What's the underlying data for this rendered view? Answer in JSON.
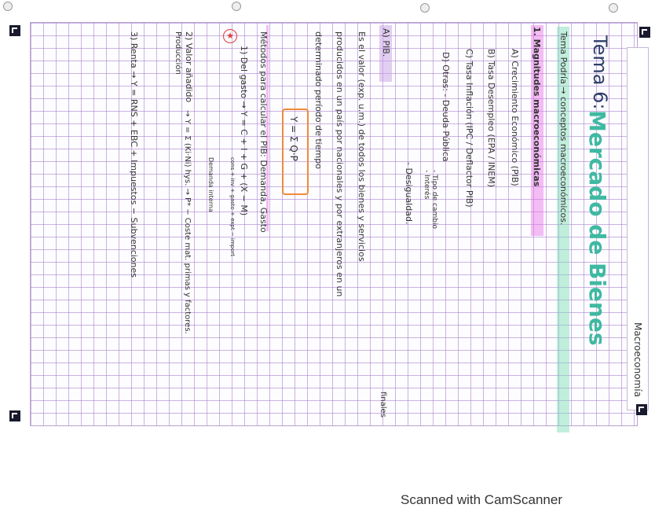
{
  "header": {
    "tema": "Tema 6:",
    "title": "Mercado de Bienes",
    "subject": "Macroeconomía",
    "subtitle": "Tema Podría → conceptos macroeconómicos."
  },
  "section1": {
    "heading": "1. Magnitudes macroeconómicas",
    "items": [
      "A) Crecimiento Económico (PIB)",
      "B) Tasa Desempleo (EPA / INEM)",
      "C) Tasa Inflación (IPC / Deflactor PIB)",
      "D) Otras: - Deuda Pública"
    ],
    "others": [
      "- Tipo de cambio",
      "- Interés",
      "- Desigualdad."
    ]
  },
  "pib": {
    "heading": "A) PIB.",
    "def1": "Es el valor (exp. u.m.) de todos los bienes y servicios",
    "def1b": "finales",
    "def2": "producidos en un país por nacionales y por extranjeros en un",
    "def3": "determinado período de tiempo",
    "formula": "Y = Σ Q·P",
    "methods": "Métodos para calcular el PIB: Demanda, Gasto",
    "star": "★",
    "m1": "1) Del gasto → Y = C + I + G + (X − M)",
    "m1_note": "cons + inv + gasto + expt − import",
    "m1_note2": "Demanda interna",
    "m2": "2) Valor añadido",
    "m2b": "Producción",
    "m2_formula": "→ Y = Σ (Ki·Ni) hys. → P* − Coste mat. primas y factores.",
    "m3": "3) Renta → Y = RNS + EBC + Impuestos − Subvenciones"
  },
  "footer": "Scanned with CamScanner"
}
